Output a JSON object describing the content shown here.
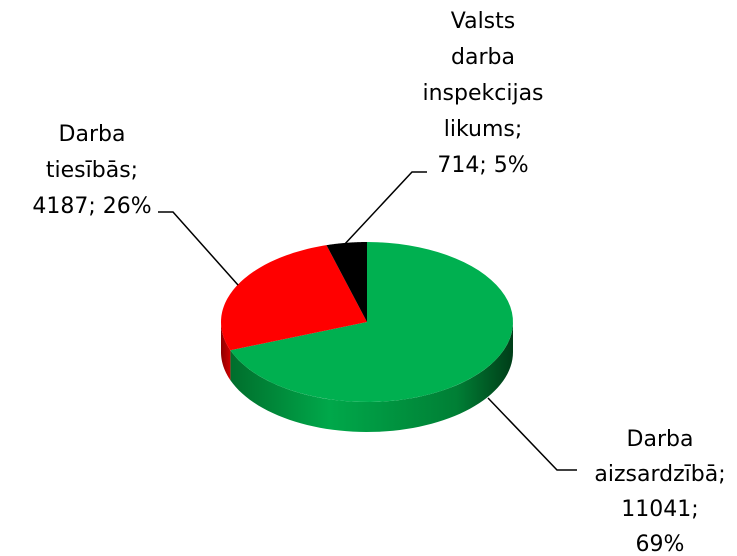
{
  "chart_data": {
    "type": "pie",
    "three_d": true,
    "categories": [
      "Darba aizsardzībā",
      "Darba tiesībās",
      "Valsts darba inspekcijas likums"
    ],
    "values": [
      11041,
      4187,
      714
    ],
    "value_labels": [
      "Darba aizsardzībā; 11041; 69%",
      "Darba tiesībās; 4187; 26%",
      "Valsts darba inspekcijas likums; 714; 5%"
    ],
    "colors": [
      "#00b050",
      "#ff0000",
      "#000000"
    ]
  }
}
